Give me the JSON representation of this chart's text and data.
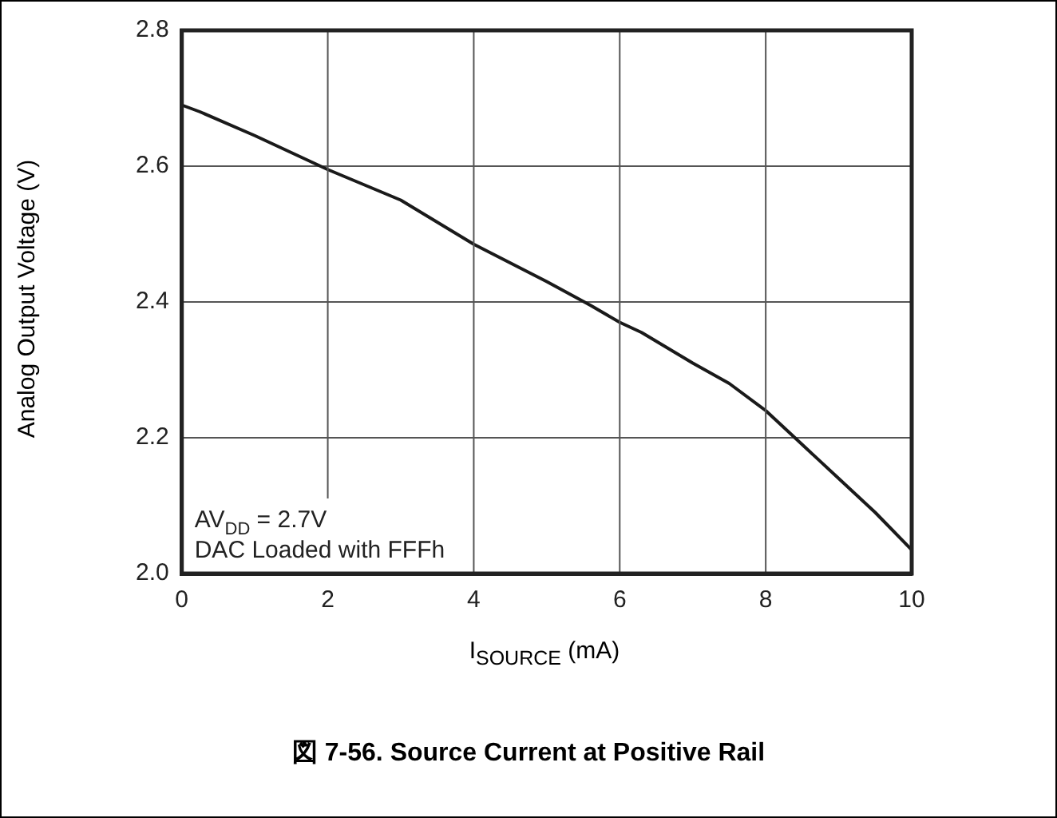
{
  "chart_data": {
    "type": "line",
    "title": "図 7-56. Source Current at Positive Rail",
    "xlabel": "I$_{SOURCE}$ (mA)",
    "ylabel": "Analog Output Voltage (V)",
    "x": [
      0,
      0.25,
      1,
      2,
      3,
      4,
      5,
      5.6,
      6,
      6.3,
      7,
      7.5,
      8,
      8.2,
      9,
      9.5,
      10
    ],
    "series": [
      {
        "color": "#1a1a1a",
        "values": [
          2.69,
          2.68,
          2.645,
          2.595,
          2.55,
          2.485,
          2.43,
          2.395,
          2.37,
          2.355,
          2.31,
          2.28,
          2.24,
          2.22,
          2.14,
          2.09,
          2.035
        ]
      }
    ],
    "xlim": [
      0,
      10
    ],
    "xticks": [
      0,
      2,
      4,
      6,
      8,
      10
    ],
    "ylim": [
      2.0,
      2.8
    ],
    "yticks": [
      {
        "value": 2.0,
        "label": "2.0"
      },
      {
        "value": 2.2,
        "label": "2.2"
      },
      {
        "value": 2.4,
        "label": "2.4"
      },
      {
        "value": 2.6,
        "label": "2.6"
      },
      {
        "value": 2.8,
        "label": "2.8"
      }
    ],
    "grid": true,
    "legend": false,
    "marker": "none",
    "line_style": "solid",
    "annotations": [
      "AV$_{DD}$ = 2.7V",
      "DAC Loaded with FFFh"
    ]
  }
}
